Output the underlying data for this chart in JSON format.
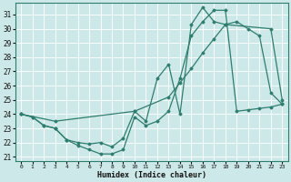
{
  "xlabel": "Humidex (Indice chaleur)",
  "xlim": [
    -0.5,
    23.5
  ],
  "ylim": [
    20.7,
    31.8
  ],
  "yticks": [
    21,
    22,
    23,
    24,
    25,
    26,
    27,
    28,
    29,
    30,
    31
  ],
  "xticks": [
    0,
    1,
    2,
    3,
    4,
    5,
    6,
    7,
    8,
    9,
    10,
    11,
    12,
    13,
    14,
    15,
    16,
    17,
    18,
    19,
    20,
    21,
    22,
    23
  ],
  "bg_color": "#cde8e8",
  "grid_color": "#ffffff",
  "line_color": "#2e7d6e",
  "line1_x": [
    0,
    1,
    2,
    3,
    4,
    5,
    6,
    7,
    8,
    9,
    10,
    11,
    12,
    13,
    14,
    15,
    16,
    17,
    18,
    19,
    20,
    21,
    22,
    23
  ],
  "line1_y": [
    24.0,
    23.8,
    23.2,
    23.0,
    22.2,
    21.8,
    21.5,
    21.2,
    21.2,
    21.5,
    23.8,
    23.2,
    23.5,
    24.2,
    26.5,
    29.5,
    30.5,
    31.3,
    31.3,
    24.2,
    24.3,
    24.4,
    24.5,
    24.7
  ],
  "line2_x": [
    0,
    1,
    2,
    3,
    4,
    5,
    6,
    7,
    8,
    9,
    10,
    11,
    12,
    13,
    14,
    15,
    16,
    17,
    18,
    22,
    23
  ],
  "line2_y": [
    24.0,
    23.8,
    23.2,
    23.0,
    22.2,
    22.0,
    21.9,
    22.0,
    21.7,
    22.3,
    24.2,
    23.5,
    26.5,
    27.5,
    24.0,
    30.3,
    31.5,
    30.5,
    30.3,
    30.0,
    25.0
  ],
  "line3_x": [
    0,
    3,
    10,
    13,
    14,
    15,
    16,
    17,
    18,
    19,
    20,
    21,
    22,
    23
  ],
  "line3_y": [
    24.0,
    23.5,
    24.2,
    25.2,
    26.2,
    27.2,
    28.3,
    29.3,
    30.3,
    30.5,
    30.0,
    29.5,
    25.5,
    24.7
  ]
}
